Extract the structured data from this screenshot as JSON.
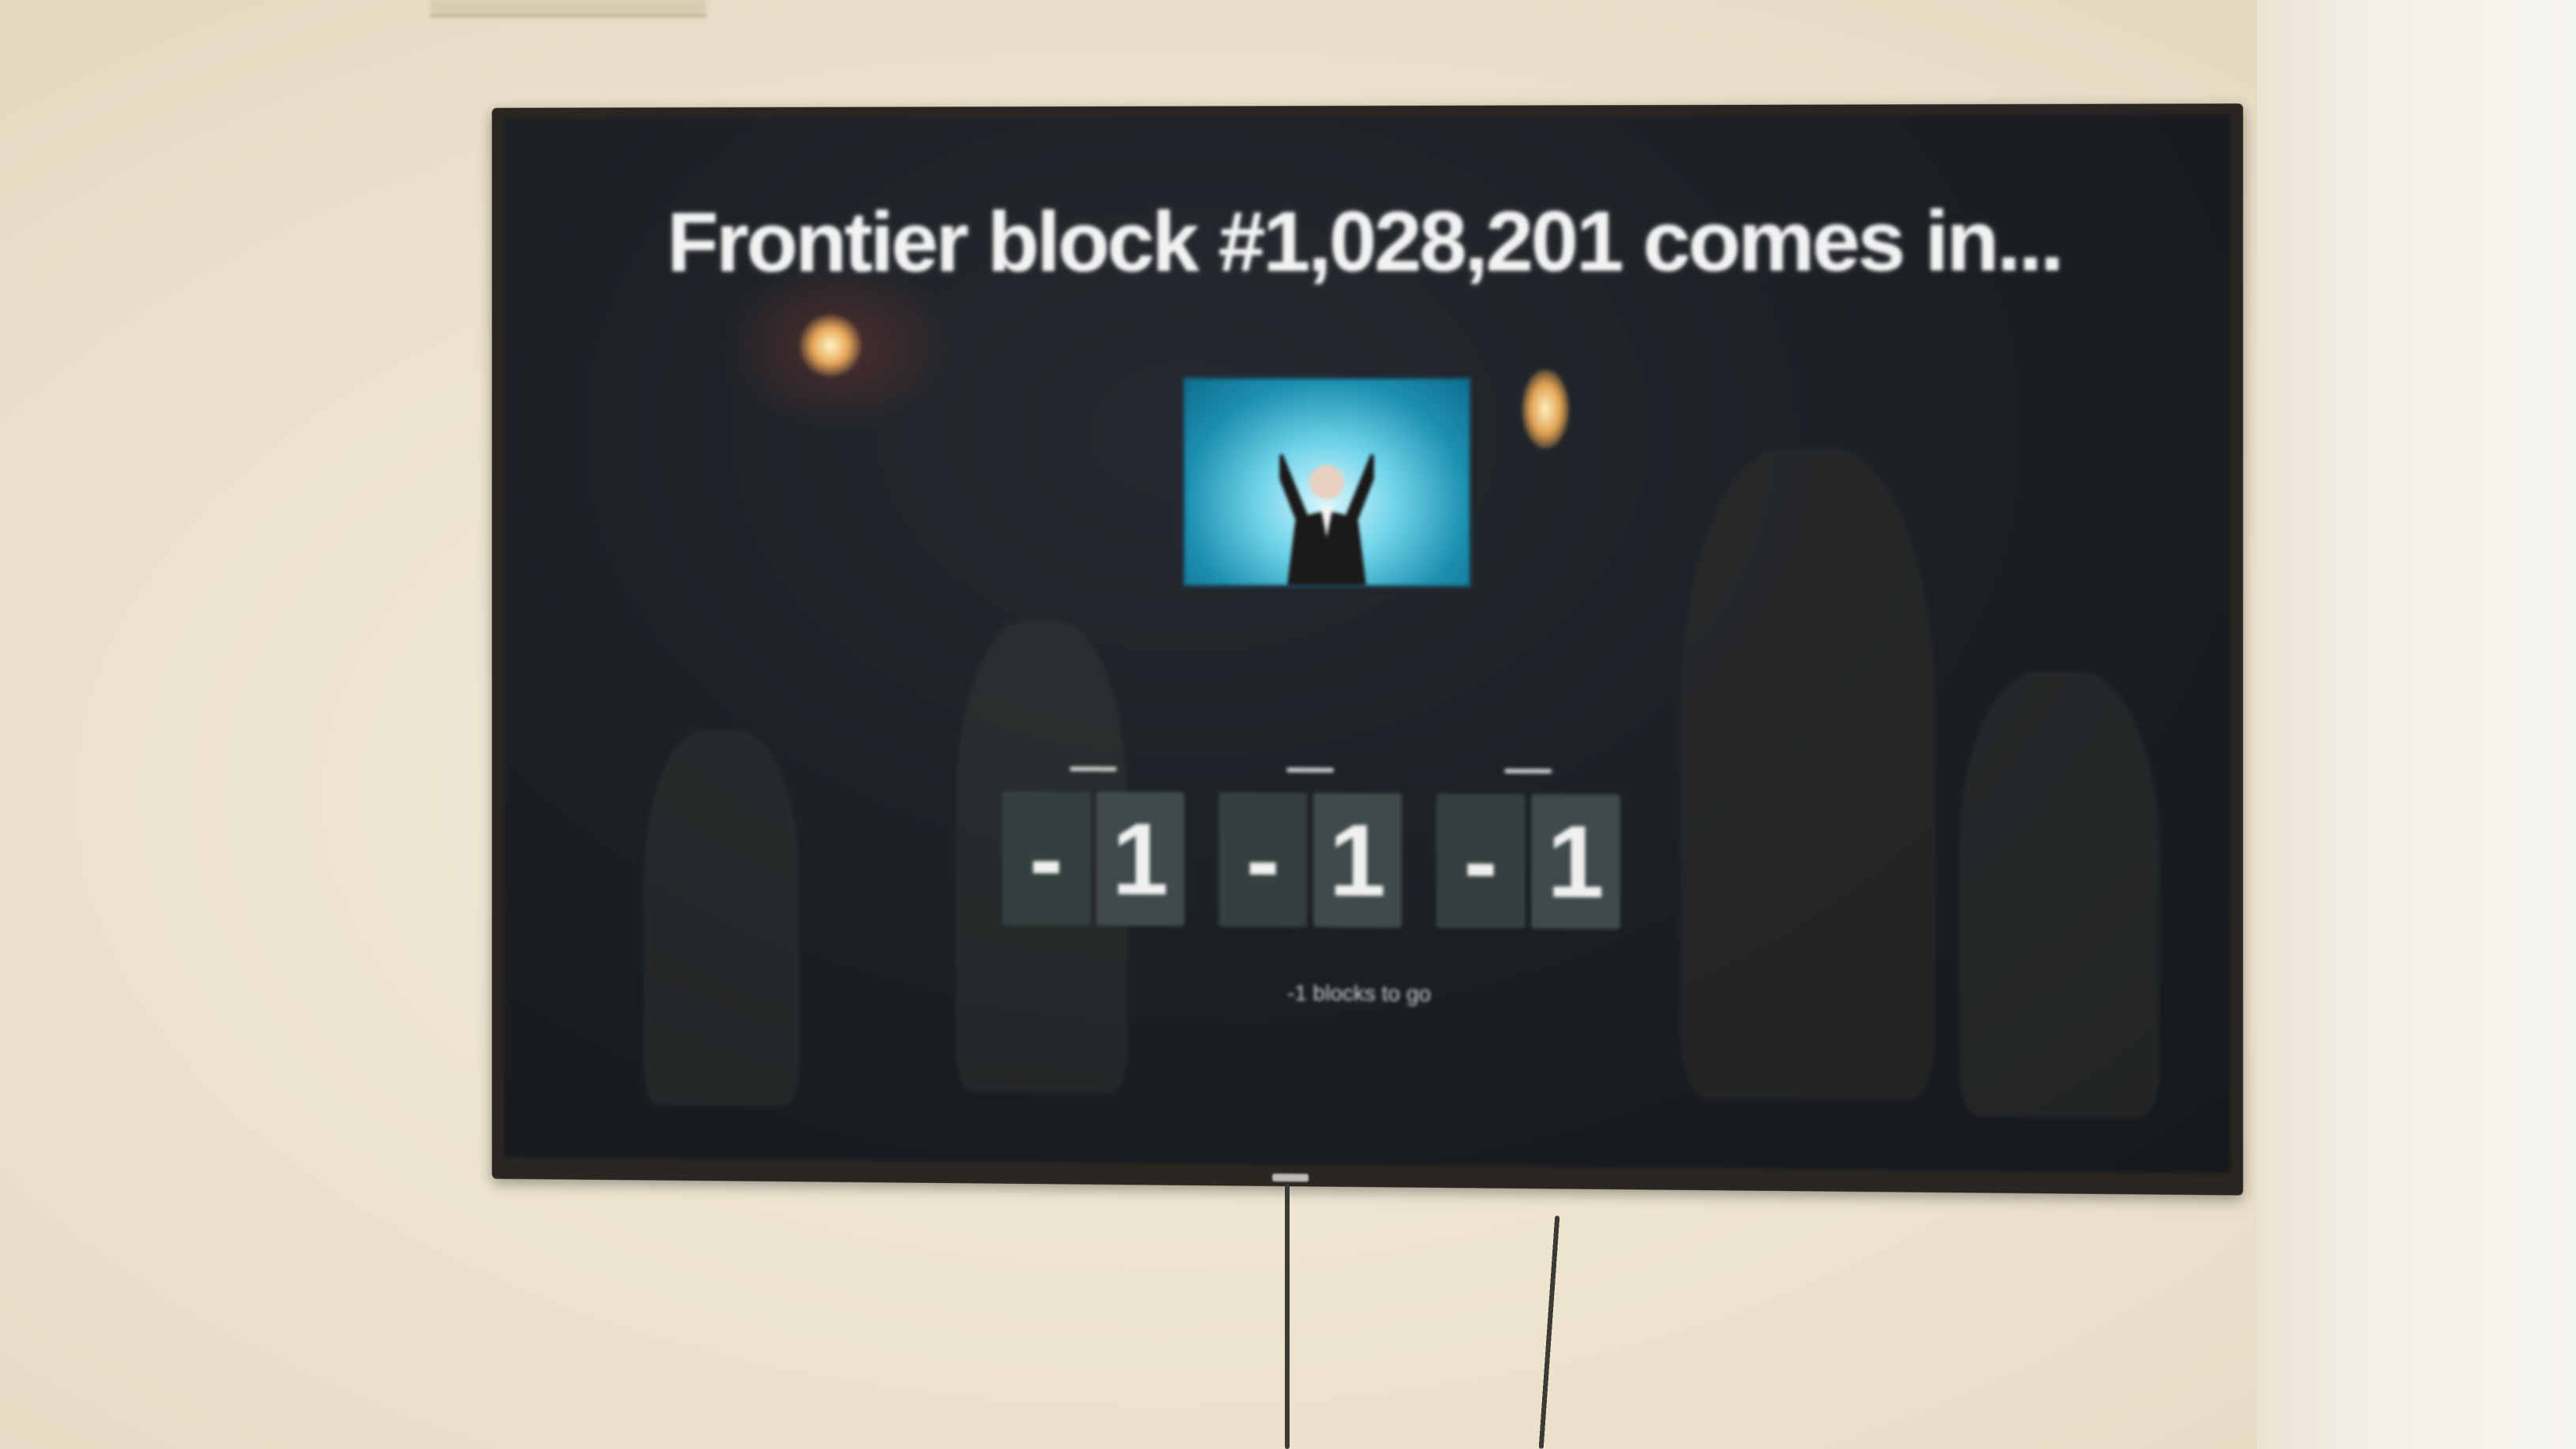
{
  "tv_screen": {
    "title": "Frontier block #1,028,201 comes in...",
    "countdown": {
      "groups": [
        {
          "digits": [
            "-",
            "1"
          ]
        },
        {
          "digits": [
            "-",
            "1"
          ]
        },
        {
          "digits": [
            "-",
            "1"
          ]
        }
      ]
    },
    "footer_text": "-1 blocks to go"
  },
  "colors": {
    "wall": "#efe7d3",
    "tv_bezel": "#2a2622",
    "screen_bg": "#1b1f24",
    "title_text": "#f2f2f2",
    "digit_tile": "#3f4a4c",
    "gif_cyan": "#6ed3e8"
  },
  "icons": {
    "gif": "celebrating-man-image"
  }
}
